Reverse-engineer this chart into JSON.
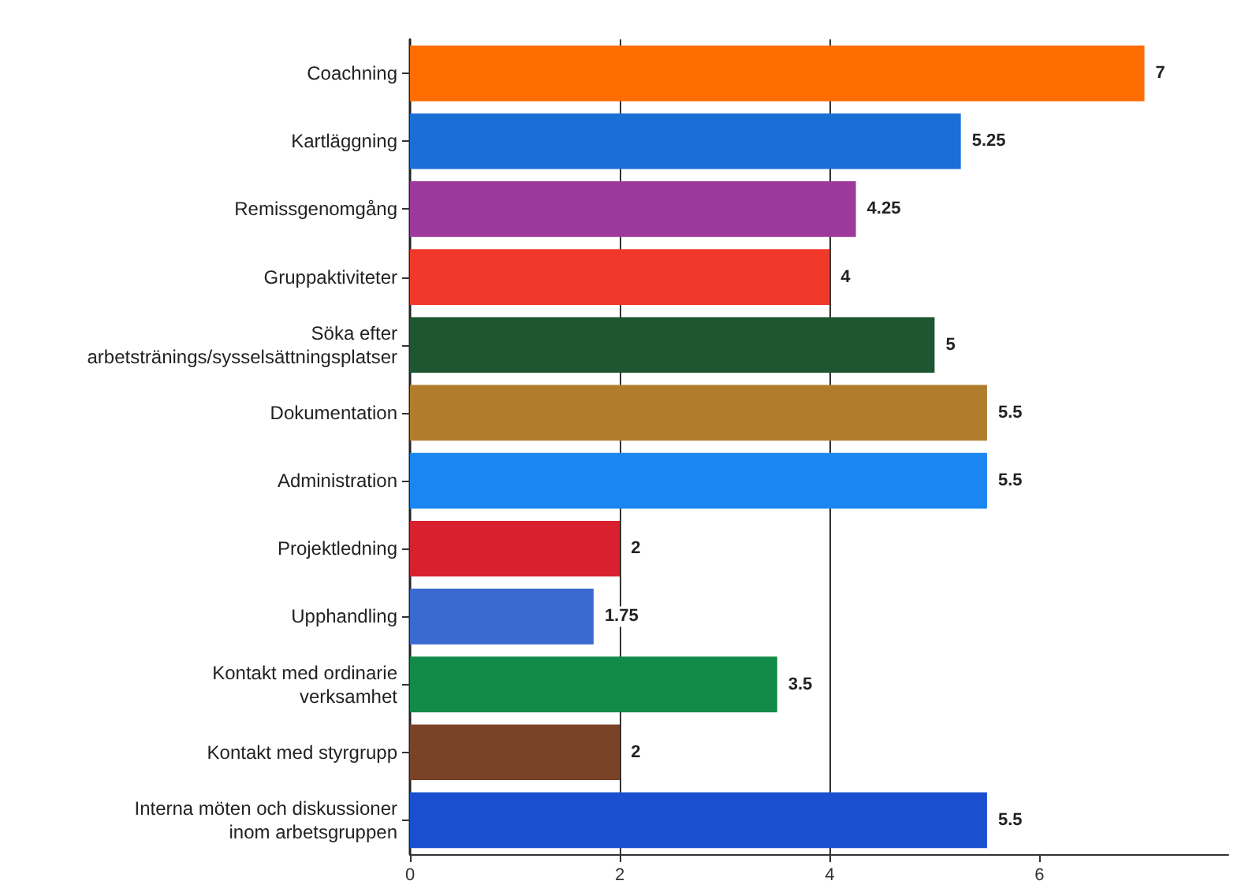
{
  "chart_data": {
    "type": "bar",
    "orientation": "horizontal",
    "categories": [
      "Coachning",
      "Kartläggning",
      "Remissgenomgång",
      "Gruppaktiviteter",
      "Söka efter arbetstränings/sysselsättningsplatser",
      "Dokumentation",
      "Administration",
      "Projektledning",
      "Upphandling",
      "Kontakt med ordinarie verksamhet",
      "Kontakt med styrgrupp",
      "Interna möten och diskussioner inom arbetsgruppen"
    ],
    "values": [
      7,
      5.25,
      4.25,
      4,
      5,
      5.5,
      5.5,
      2,
      1.75,
      3.5,
      2,
      5.5
    ],
    "colors": [
      "#ff6d00",
      "#1a6fd6",
      "#9c3a9c",
      "#f0392b",
      "#1d5631",
      "#b07d2c",
      "#1a86f0",
      "#d8202e",
      "#3a6ad0",
      "#128a48",
      "#7a4226",
      "#1a50d0"
    ],
    "xlim": [
      0,
      7.8
    ],
    "xticks": [
      0,
      2,
      4,
      6
    ],
    "grid": "x",
    "data_labels": true
  }
}
